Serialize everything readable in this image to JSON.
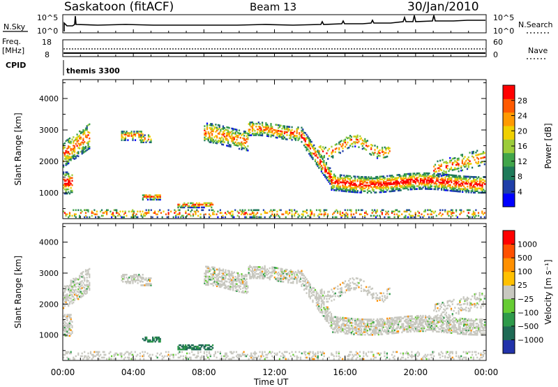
{
  "header": {
    "station": "Saskatoon (fitACF)",
    "beam": "Beam 13",
    "date": "30/Jan/2010"
  },
  "summary_panel": {
    "nsky_label": "N.Sky",
    "nsky_ticks": [
      "10^5",
      "10^0"
    ],
    "nsearch_label": "N.Search",
    "nsearch_ticks": [
      "10^5",
      "10^0"
    ],
    "freq_label_line1": "Freq.",
    "freq_label_line2": "[MHz]",
    "freq_ticks": [
      "18",
      "8"
    ],
    "nave_label": "Nave",
    "nave_ticks": [
      "60",
      "0"
    ],
    "cpid_label": "CPID",
    "cpid_value": "themis 3300"
  },
  "chart_data": [
    {
      "type": "heatmap",
      "name": "power",
      "ylabel": "Slant Range [km]",
      "xlabel": "Time UT",
      "y_ticks": [
        "1000",
        "2000",
        "3000",
        "4000"
      ],
      "ylim": [
        180,
        4600
      ],
      "x_ticks": [
        "00:00",
        "04:00",
        "08:00",
        "12:00",
        "16:00",
        "20:00",
        "00:00"
      ],
      "xlim_hours": [
        0,
        24
      ],
      "colorbar": {
        "label": "Power [dB]",
        "tick_labels": [
          "4",
          "8",
          "12",
          "16",
          "20",
          "24",
          "28"
        ],
        "range": [
          0,
          30
        ],
        "colors": [
          "#0000ff",
          "#1f3fa8",
          "#1f7a5a",
          "#41a54a",
          "#9ccc3a",
          "#f0d000",
          "#ff9a00",
          "#ff5a00",
          "#ff0000"
        ]
      }
    },
    {
      "type": "heatmap",
      "name": "velocity",
      "ylabel": "Slant Range [km]",
      "xlabel": "Time UT",
      "y_ticks": [
        "1000",
        "2000",
        "3000",
        "4000"
      ],
      "ylim": [
        180,
        4600
      ],
      "x_ticks": [
        "00:00",
        "04:00",
        "08:00",
        "12:00",
        "16:00",
        "20:00",
        "00:00"
      ],
      "xlim_hours": [
        0,
        24
      ],
      "colorbar": {
        "label": "Velocity [m s⁻¹]",
        "tick_labels": [
          "1000",
          "500",
          "100",
          "25",
          "−25",
          "−100",
          "−500",
          "−1000"
        ],
        "colors": [
          "#2233aa",
          "#1f6a55",
          "#2e9a4a",
          "#66cc33",
          "#c8c8c0",
          "#ffc000",
          "#ff9000",
          "#ff5000",
          "#ff0000"
        ]
      }
    }
  ]
}
